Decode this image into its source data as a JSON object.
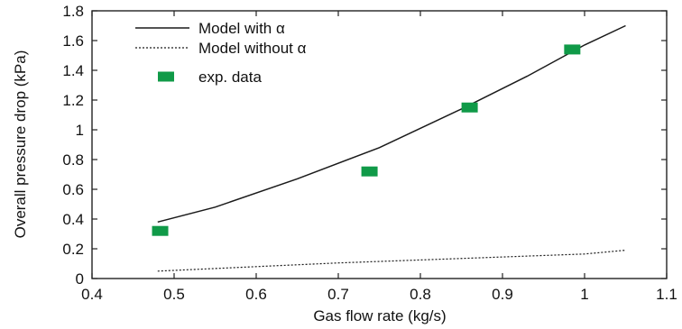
{
  "chart_data": {
    "type": "line",
    "xlabel": "Gas flow rate (kg/s)",
    "ylabel": "Overall pressure drop (kPa)",
    "xlim": [
      0.4,
      1.1
    ],
    "ylim": [
      0,
      1.8
    ],
    "xticks": [
      0.4,
      0.5,
      0.6,
      0.7,
      0.8,
      0.9,
      1,
      1.1
    ],
    "yticks": [
      0,
      0.2,
      0.4,
      0.6,
      0.8,
      1,
      1.2,
      1.4,
      1.6,
      1.8
    ],
    "xtick_labels": [
      "0.4",
      "0.5",
      "0.6",
      "0.7",
      "0.8",
      "0.9",
      "1",
      "1.1"
    ],
    "ytick_labels": [
      "0",
      "0.2",
      "0.4",
      "0.6",
      "0.8",
      "1",
      "1.2",
      "1.4",
      "1.6",
      "1.8"
    ],
    "grid": false,
    "legend_position": "top-left",
    "series": [
      {
        "name": "Model with α",
        "style": "solid",
        "color": "#1a1a1a",
        "x": [
          0.48,
          0.55,
          0.65,
          0.75,
          0.85,
          0.93,
          1.0,
          1.05
        ],
        "y": [
          0.38,
          0.48,
          0.67,
          0.88,
          1.14,
          1.36,
          1.57,
          1.7
        ]
      },
      {
        "name": "Model without α",
        "style": "dotted",
        "color": "#1a1a1a",
        "x": [
          0.48,
          0.6,
          0.7,
          0.8,
          0.9,
          1.0,
          1.05
        ],
        "y": [
          0.05,
          0.08,
          0.105,
          0.125,
          0.145,
          0.165,
          0.19
        ]
      },
      {
        "name": "exp. data",
        "style": "marker",
        "color": "#109a48",
        "x": [
          0.483,
          0.738,
          0.86,
          0.985
        ],
        "y": [
          0.32,
          0.72,
          1.15,
          1.54
        ]
      }
    ]
  }
}
